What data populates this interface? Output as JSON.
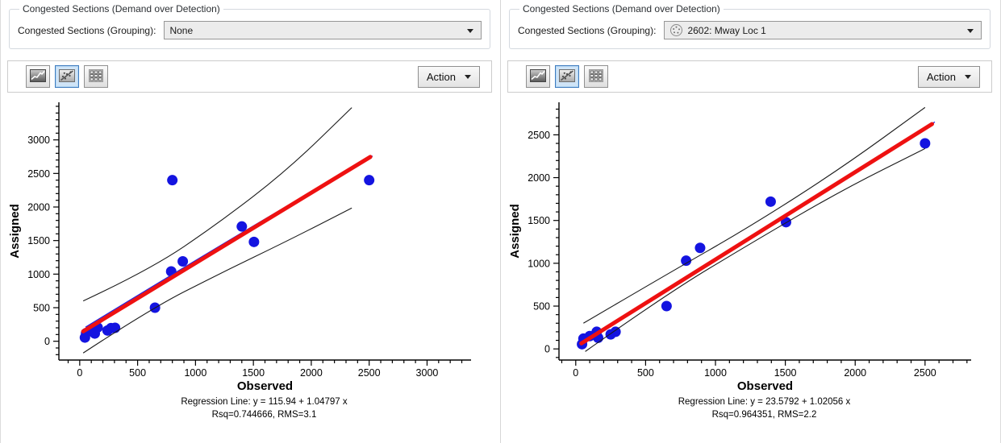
{
  "ui": {
    "panels": [
      {
        "groupbox_title": "Congested Sections (Demand over Detection)",
        "grouping_label": "Congested Sections (Grouping):",
        "combo_value": "None",
        "combo_has_icon": false,
        "toolbar": {
          "action_label": "Action"
        }
      },
      {
        "groupbox_title": "Congested Sections (Demand over Detection)",
        "grouping_label": "Congested Sections (Grouping):",
        "combo_value": "2602: Mway Loc 1",
        "combo_has_icon": true,
        "toolbar": {
          "action_label": "Action"
        }
      }
    ],
    "icons": {
      "toolbar": [
        "line-chart-icon",
        "scatter-regression-icon",
        "table-grid-icon"
      ],
      "combo_icon": "section-group-icon"
    },
    "colors": {
      "point": "#1414e0",
      "regression": "#ee1111",
      "fit_line": "#2222dd",
      "confidence": "#1a1a1a",
      "selected_button_border": "#3f7cbf",
      "selected_button_bg": "#cfe4f7"
    }
  },
  "chart_data": [
    {
      "type": "scatter",
      "xlabel": "Observed",
      "ylabel": "Assigned",
      "xlim": [
        -180,
        3380
      ],
      "ylim": [
        -280,
        3560
      ],
      "x_ticks": [
        0,
        500,
        1000,
        1500,
        2000,
        2500,
        3000
      ],
      "y_ticks": [
        0,
        500,
        1000,
        1500,
        2000,
        2500,
        3000
      ],
      "minor_step": 100,
      "points": [
        [
          45,
          55
        ],
        [
          55,
          120
        ],
        [
          100,
          150
        ],
        [
          130,
          115
        ],
        [
          155,
          205
        ],
        [
          240,
          160
        ],
        [
          270,
          195
        ],
        [
          305,
          200
        ],
        [
          650,
          500
        ],
        [
          800,
          2400
        ],
        [
          790,
          1040
        ],
        [
          890,
          1190
        ],
        [
          1400,
          1710
        ],
        [
          1505,
          1480
        ],
        [
          2500,
          2400
        ]
      ],
      "regression": {
        "intercept": 115.94,
        "slope": 1.04797,
        "x_start": 30,
        "x_end": 2510
      },
      "fit_line": {
        "points": [
          [
            50,
            210
          ],
          [
            1250,
            1470
          ],
          [
            2530,
            2760
          ]
        ]
      },
      "confidence_upper": [
        [
          30,
          600
        ],
        [
          600,
          1060
        ],
        [
          1200,
          1760
        ],
        [
          1800,
          2560
        ],
        [
          2350,
          3480
        ]
      ],
      "confidence_lower": [
        [
          30,
          -175
        ],
        [
          600,
          470
        ],
        [
          1200,
          1000
        ],
        [
          1800,
          1500
        ],
        [
          2350,
          1985
        ]
      ],
      "caption1": "Regression Line: y = 115.94 + 1.04797 x",
      "caption2": "Rsq=0.744666, RMS=3.1",
      "point_radius": 6.5
    },
    {
      "type": "scatter",
      "xlabel": "Observed",
      "ylabel": "Assigned",
      "xlim": [
        -120,
        2830
      ],
      "ylim": [
        -130,
        2880
      ],
      "x_ticks": [
        0,
        500,
        1000,
        1500,
        2000,
        2500
      ],
      "y_ticks": [
        0,
        500,
        1000,
        1500,
        2000,
        2500
      ],
      "minor_step": 100,
      "points": [
        [
          45,
          55
        ],
        [
          55,
          120
        ],
        [
          100,
          150
        ],
        [
          150,
          200
        ],
        [
          160,
          130
        ],
        [
          250,
          170
        ],
        [
          285,
          200
        ],
        [
          650,
          500
        ],
        [
          790,
          1030
        ],
        [
          890,
          1180
        ],
        [
          1395,
          1720
        ],
        [
          1505,
          1480
        ],
        [
          2500,
          2400
        ]
      ],
      "regression": {
        "intercept": 23.5792,
        "slope": 1.02056,
        "x_start": 40,
        "x_end": 2550
      },
      "fit_line": {
        "points": [
          [
            50,
            85
          ],
          [
            1250,
            1320
          ],
          [
            2570,
            2650
          ]
        ]
      },
      "confidence_upper": [
        [
          55,
          300
        ],
        [
          650,
          870
        ],
        [
          1250,
          1430
        ],
        [
          1900,
          2110
        ],
        [
          2500,
          2820
        ]
      ],
      "confidence_lower": [
        [
          68,
          -30
        ],
        [
          650,
          640
        ],
        [
          1250,
          1230
        ],
        [
          1900,
          1850
        ],
        [
          2500,
          2340
        ]
      ],
      "caption1": "Regression Line: y = 23.5792 + 1.02056 x",
      "caption2": "Rsq=0.964351, RMS=2.2",
      "point_radius": 6.5
    }
  ]
}
